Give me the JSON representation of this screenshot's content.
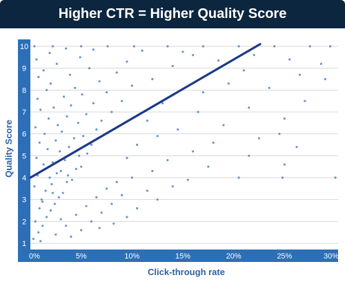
{
  "header": {
    "title": "Higher CTR = Higher Quality Score"
  },
  "colors": {
    "title_bar": "#0c2640",
    "axis_band": "#2d6fb7",
    "points": "#4a84c4",
    "trend_line": "#1a3a8a",
    "grid": "#d7d7d7",
    "axis_title": "#2a63a8"
  },
  "chart_data": {
    "type": "scatter",
    "title": "Higher CTR = Higher Quality Score",
    "xlabel": "Click-through rate",
    "ylabel": "Quality Score",
    "xlim": [
      0,
      30
    ],
    "ylim": [
      1,
      10
    ],
    "x_ticks": [
      "0%",
      "5%",
      "10%",
      "15%",
      "20%",
      "25%",
      "30%"
    ],
    "y_ticks": [
      "1",
      "2",
      "3",
      "4",
      "5",
      "6",
      "7",
      "8",
      "9",
      "10"
    ],
    "grid": "horizontal",
    "trend_line": {
      "x": [
        0,
        22.6
      ],
      "y": [
        4.0,
        10.1
      ]
    },
    "points_shown": "many thousands; density highest at 0-5% CTR across Quality Scores 1-8",
    "series": [
      {
        "points": [
          [
            0.3,
            1.2
          ],
          [
            0.8,
            1.5
          ],
          [
            1.2,
            1.8
          ],
          [
            0.5,
            2.0
          ],
          [
            1.6,
            2.2
          ],
          [
            2.0,
            2.5
          ],
          [
            0.9,
            2.6
          ],
          [
            2.4,
            2.8
          ],
          [
            1.1,
            3.0
          ],
          [
            2.8,
            3.1
          ],
          [
            3.2,
            3.3
          ],
          [
            1.5,
            3.4
          ],
          [
            0.4,
            3.6
          ],
          [
            2.1,
            3.7
          ],
          [
            3.6,
            3.8
          ],
          [
            4.1,
            3.9
          ],
          [
            1.9,
            4.0
          ],
          [
            0.7,
            4.1
          ],
          [
            2.6,
            4.2
          ],
          [
            3.0,
            4.3
          ],
          [
            4.5,
            4.4
          ],
          [
            5.0,
            4.5
          ],
          [
            1.3,
            4.6
          ],
          [
            2.2,
            4.7
          ],
          [
            3.4,
            4.8
          ],
          [
            0.6,
            4.9
          ],
          [
            4.8,
            5.0
          ],
          [
            5.6,
            5.1
          ],
          [
            2.9,
            5.2
          ],
          [
            1.7,
            5.3
          ],
          [
            3.8,
            5.4
          ],
          [
            6.0,
            5.5
          ],
          [
            0.9,
            5.6
          ],
          [
            2.5,
            5.7
          ],
          [
            4.3,
            5.8
          ],
          [
            5.2,
            5.9
          ],
          [
            1.4,
            6.0
          ],
          [
            3.1,
            6.1
          ],
          [
            6.5,
            6.2
          ],
          [
            0.5,
            6.3
          ],
          [
            2.7,
            6.4
          ],
          [
            4.7,
            6.5
          ],
          [
            7.0,
            6.6
          ],
          [
            1.8,
            6.7
          ],
          [
            3.6,
            6.8
          ],
          [
            5.5,
            6.9
          ],
          [
            8.0,
            7.0
          ],
          [
            1.0,
            7.1
          ],
          [
            2.3,
            7.2
          ],
          [
            4.0,
            7.3
          ],
          [
            6.2,
            7.4
          ],
          [
            9.0,
            7.5
          ],
          [
            0.7,
            7.6
          ],
          [
            3.3,
            7.7
          ],
          [
            5.1,
            7.8
          ],
          [
            7.5,
            7.9
          ],
          [
            1.6,
            8.0
          ],
          [
            4.4,
            8.1
          ],
          [
            10.0,
            8.2
          ],
          [
            2.0,
            8.3
          ],
          [
            6.8,
            8.4
          ],
          [
            12.0,
            8.5
          ],
          [
            0.8,
            8.6
          ],
          [
            3.9,
            8.7
          ],
          [
            8.5,
            8.8
          ],
          [
            1.3,
            8.9
          ],
          [
            5.8,
            9.0
          ],
          [
            14.0,
            9.1
          ],
          [
            2.6,
            9.2
          ],
          [
            9.5,
            9.3
          ],
          [
            0.6,
            9.4
          ],
          [
            4.9,
            9.5
          ],
          [
            16.0,
            9.6
          ],
          [
            1.9,
            9.7
          ],
          [
            11.0,
            9.8
          ],
          [
            3.5,
            9.9
          ],
          [
            0.4,
            10.0
          ],
          [
            2.2,
            10.0
          ],
          [
            5.0,
            10.0
          ],
          [
            7.6,
            10.0
          ],
          [
            10.2,
            10.0
          ],
          [
            13.5,
            10.0
          ],
          [
            17.0,
            10.0
          ],
          [
            20.5,
            10.0
          ],
          [
            24.0,
            10.0
          ],
          [
            27.5,
            10.0
          ],
          [
            29.5,
            10.0
          ],
          [
            6.2,
            9.85
          ],
          [
            15.0,
            9.75
          ],
          [
            22.0,
            9.6
          ],
          [
            18.5,
            9.35
          ],
          [
            25.5,
            9.4
          ],
          [
            28.6,
            9.2
          ],
          [
            21.0,
            8.9
          ],
          [
            26.5,
            8.7
          ],
          [
            29.0,
            8.5
          ],
          [
            19.5,
            8.3
          ],
          [
            23.5,
            8.1
          ],
          [
            17.0,
            7.9
          ],
          [
            27.0,
            7.5
          ],
          [
            13.0,
            7.4
          ],
          [
            21.5,
            7.2
          ],
          [
            16.5,
            7.0
          ],
          [
            25.0,
            6.7
          ],
          [
            11.5,
            6.6
          ],
          [
            19.0,
            6.4
          ],
          [
            24.5,
            6.0
          ],
          [
            14.5,
            6.2
          ],
          [
            22.5,
            5.8
          ],
          [
            12.5,
            5.9
          ],
          [
            18.0,
            5.6
          ],
          [
            26.2,
            5.4
          ],
          [
            10.5,
            5.5
          ],
          [
            16.0,
            5.2
          ],
          [
            21.5,
            5.0
          ],
          [
            13.5,
            4.8
          ],
          [
            25.0,
            4.6
          ],
          [
            9.5,
            4.9
          ],
          [
            17.5,
            4.5
          ],
          [
            12.0,
            4.3
          ],
          [
            20.5,
            4.0
          ],
          [
            24.8,
            4.0
          ],
          [
            30.0,
            4.0
          ],
          [
            15.5,
            3.9
          ],
          [
            10.0,
            4.0
          ],
          [
            8.5,
            3.8
          ],
          [
            14.0,
            3.6
          ],
          [
            11.5,
            3.4
          ],
          [
            7.5,
            3.5
          ],
          [
            9.0,
            3.2
          ],
          [
            12.5,
            3.0
          ],
          [
            6.5,
            3.1
          ],
          [
            8.0,
            2.8
          ],
          [
            10.5,
            2.6
          ],
          [
            5.5,
            2.7
          ],
          [
            7.0,
            2.4
          ],
          [
            9.5,
            2.2
          ],
          [
            4.5,
            2.3
          ],
          [
            6.0,
            2.0
          ],
          [
            8.2,
            1.9
          ],
          [
            3.5,
            1.8
          ],
          [
            5.0,
            1.6
          ],
          [
            2.5,
            1.4
          ],
          [
            4.0,
            1.3
          ],
          [
            1.0,
            1.1
          ],
          [
            6.8,
            1.7
          ],
          [
            3.0,
            2.1
          ],
          [
            1.2,
            2.9
          ],
          [
            2.2,
            3.3
          ],
          [
            3.7,
            4.1
          ]
        ]
      }
    ]
  }
}
